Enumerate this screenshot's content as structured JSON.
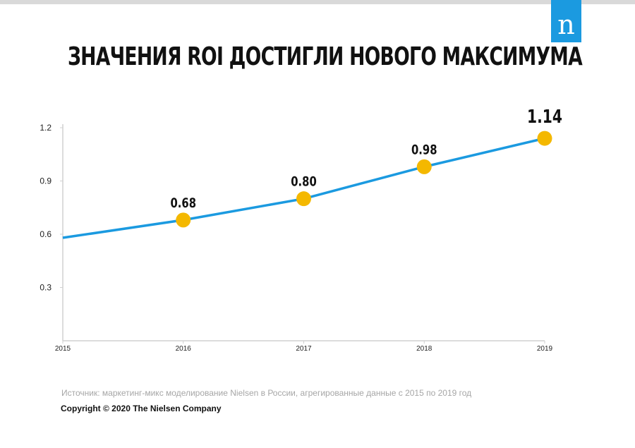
{
  "header": {
    "title": "ЗНАЧЕНИЯ ROI ДОСТИГЛИ НОВОГО МАКСИМУМА",
    "logo_letter": "n",
    "logo_color": "#1b9ae0"
  },
  "chart_data": {
    "type": "line",
    "title": "ЗНАЧЕНИЯ ROI ДОСТИГЛИ НОВОГО МАКСИМУМА",
    "xlabel": "",
    "ylabel": "",
    "x": [
      "2015",
      "2016",
      "2017",
      "2018",
      "2019"
    ],
    "y_values": [
      0.58,
      0.68,
      0.8,
      0.98,
      1.14
    ],
    "data_labels": [
      "",
      "0.68",
      "0.80",
      "0.98",
      "1.14"
    ],
    "ylim": [
      0,
      1.2
    ],
    "y_ticks": [
      "0.3",
      "0.6",
      "0.9",
      "1.2"
    ],
    "grid": false,
    "legend": "none",
    "line_color": "#1b9ae0",
    "marker_color": "#f4b800"
  },
  "footer": {
    "source": "Источник: маркетинг-микс моделирование Nielsen в России, агрегированные данные с 2015 по 2019 год",
    "copyright": "Copyright © 2020 The Nielsen Company"
  }
}
